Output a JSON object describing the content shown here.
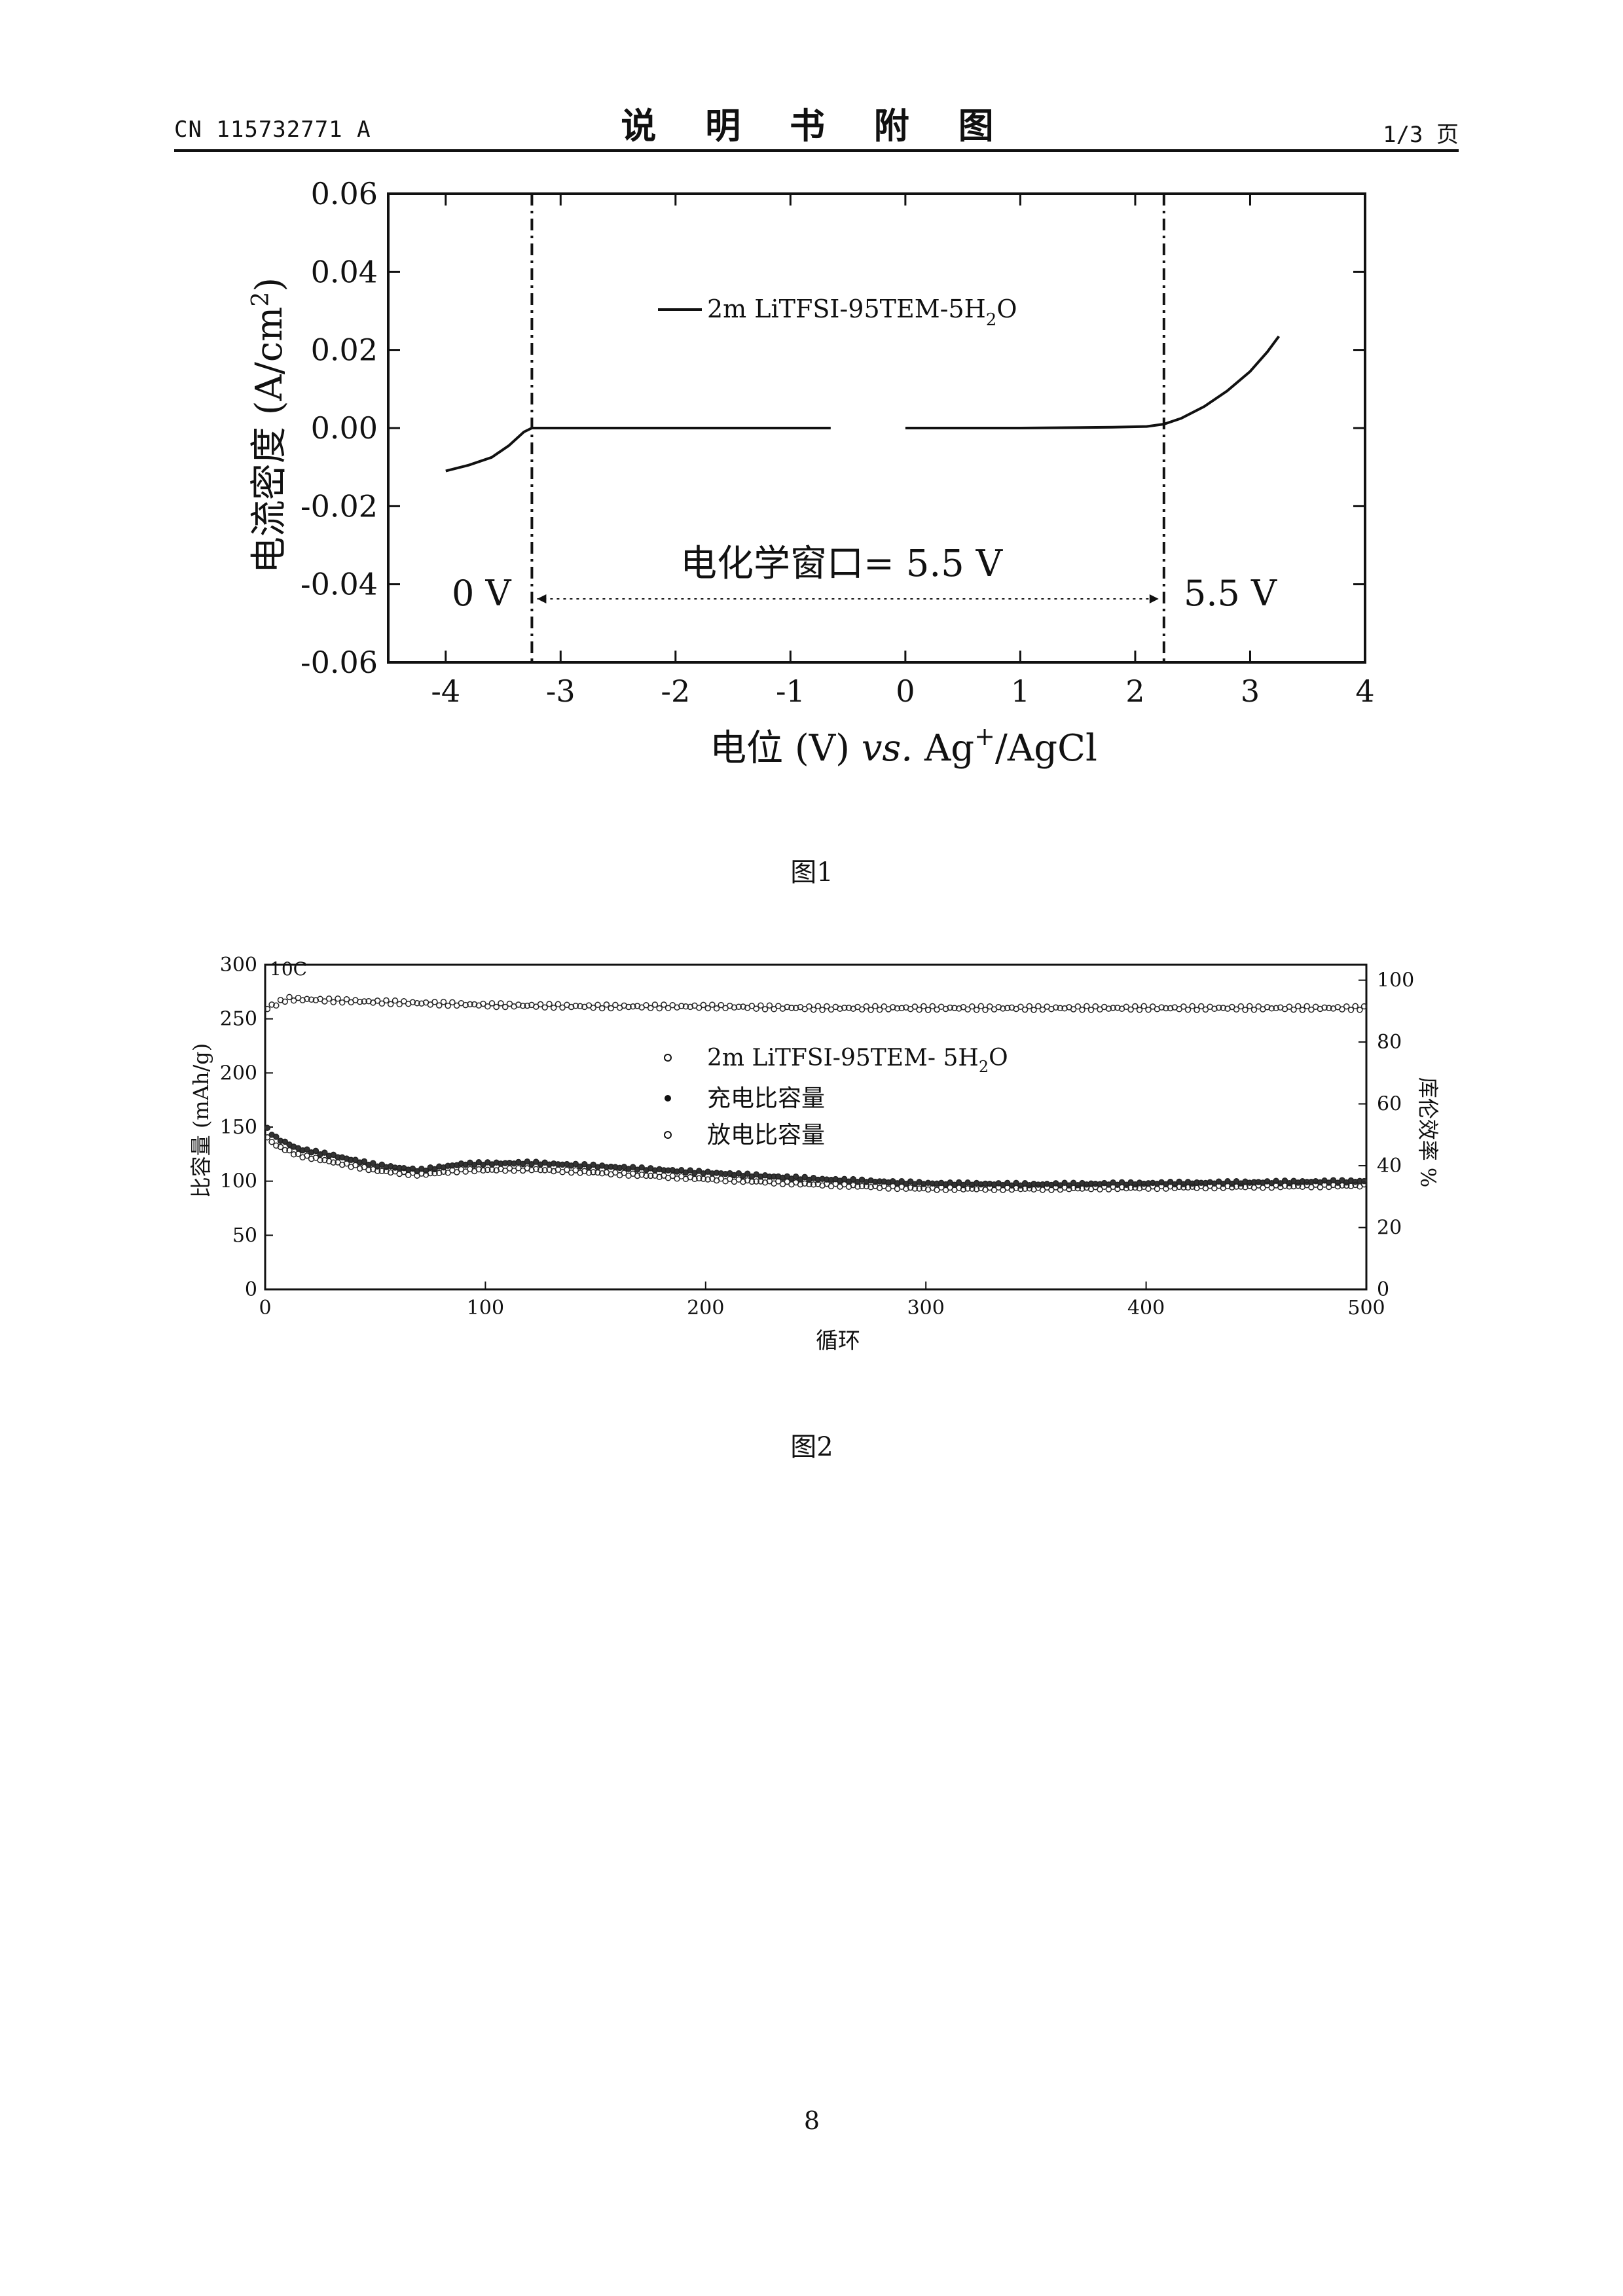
{
  "header": {
    "doc_code": "CN 115732771 A",
    "doc_title": "说 明 书 附 图",
    "page_ref": "1/3 页"
  },
  "figure1": {
    "caption": "图1",
    "chart_data": {
      "type": "line",
      "xlabel": "电位 (V) vs. Ag+/AgCl",
      "ylabel": "电流密度 (A/cm2)",
      "xlim": [
        -4.5,
        4
      ],
      "ylim": [
        -0.06,
        0.06
      ],
      "x_ticks": [
        "-4",
        "-3",
        "-2",
        "-1",
        "0",
        "1",
        "2",
        "3",
        "4"
      ],
      "y_ticks": [
        "-0.06",
        "-0.04",
        "-0.02",
        "0.00",
        "0.02",
        "0.04",
        "0.06"
      ],
      "series": [
        {
          "name": "2m LiTFSI-95TEM-5H2O",
          "segments": [
            {
              "x": [
                -4.0,
                -3.8,
                -3.6,
                -3.45,
                -3.32,
                -3.25,
                -2.5,
                -1.5,
                -0.65
              ],
              "y": [
                -0.011,
                -0.0095,
                -0.0075,
                -0.0045,
                -0.001,
                0.0,
                0.0,
                0.0,
                0.0
              ]
            },
            {
              "x": [
                0.0,
                1.0,
                1.8,
                2.1,
                2.25,
                2.4,
                2.6,
                2.8,
                3.0,
                3.15,
                3.25
              ],
              "y": [
                0.0,
                0.0,
                0.0002,
                0.0004,
                0.001,
                0.0025,
                0.0055,
                0.0095,
                0.0145,
                0.0195,
                0.0235
              ]
            }
          ]
        }
      ],
      "vlines": [
        -3.25,
        2.25
      ],
      "annotations": {
        "window": "电化学窗口= 5.5 V",
        "left_v": "0 V",
        "right_v": "5.5 V"
      },
      "legend_placement": "top-center"
    }
  },
  "figure2": {
    "caption": "图2",
    "chart_data": {
      "type": "scatter",
      "xlabel": "循环",
      "ylabel_left": "比容量 (mAh/g)",
      "ylabel_right": "库伦效率 %",
      "rate_label": "10C",
      "xlim": [
        0,
        500
      ],
      "ylim_left": [
        0,
        300
      ],
      "ylim_right": [
        0,
        105
      ],
      "x_ticks": [
        "0",
        "100",
        "200",
        "300",
        "400",
        "500"
      ],
      "y_ticks_left": [
        "0",
        "50",
        "100",
        "150",
        "200",
        "250",
        "300"
      ],
      "y_ticks_right": [
        "0",
        "20",
        "40",
        "60",
        "80",
        "100"
      ],
      "legend": [
        "2m LiTFSI-95TEM- 5H2O",
        "充电比容量",
        "放电比容量"
      ],
      "series": [
        {
          "name": "充电比容量",
          "axis": "left",
          "x": [
            1,
            5,
            15,
            30,
            50,
            70,
            90,
            120,
            150,
            200,
            250,
            300,
            350,
            400,
            450,
            500
          ],
          "y": [
            148,
            140,
            130,
            124,
            115,
            110,
            116,
            117,
            114,
            108,
            102,
            98,
            97,
            98,
            99,
            100
          ]
        },
        {
          "name": "放电比容量",
          "axis": "left",
          "x": [
            1,
            5,
            15,
            30,
            50,
            70,
            90,
            120,
            150,
            200,
            250,
            300,
            350,
            400,
            450,
            500
          ],
          "y": [
            140,
            133,
            124,
            118,
            110,
            106,
            110,
            111,
            108,
            102,
            97,
            93,
            93,
            94,
            95,
            96
          ]
        },
        {
          "name": "库伦效率",
          "axis": "right",
          "x": [
            1,
            10,
            50,
            100,
            150,
            200,
            250,
            300,
            350,
            400,
            450,
            500
          ],
          "y": [
            91,
            94,
            93,
            92,
            91.5,
            91.5,
            91,
            91,
            91,
            91,
            91,
            91
          ]
        }
      ],
      "legend_placement": "center"
    }
  },
  "footer": {
    "page_number": "8"
  }
}
